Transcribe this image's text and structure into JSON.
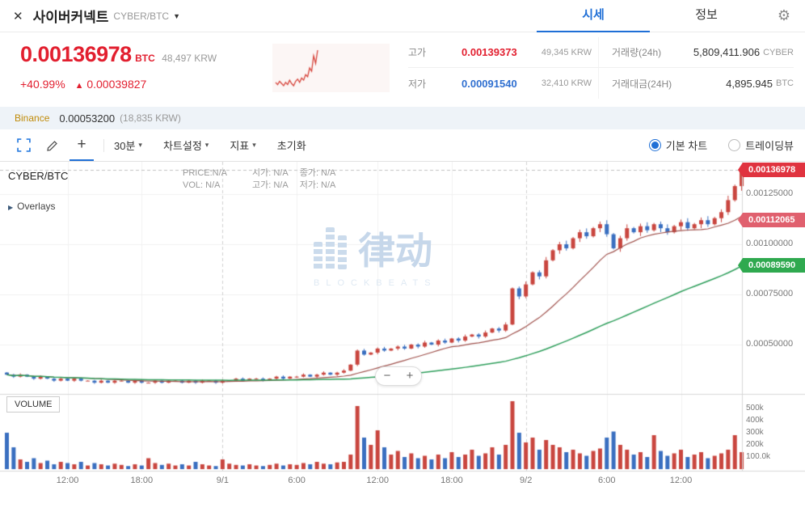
{
  "icons": {
    "close": "✕",
    "gear": "⚙",
    "chevron_down": "▼",
    "caret_down": "▾",
    "overlays_arrow": "▶",
    "plus": "+",
    "zoom_in": "+",
    "zoom_out": "−",
    "arrow_up": "▲"
  },
  "header": {
    "title": "사이버커넥트",
    "pair": "CYBER/BTC",
    "tabs": [
      {
        "label": "시세",
        "active": true
      },
      {
        "label": "정보",
        "active": false
      }
    ]
  },
  "price_panel": {
    "price": "0.00136978",
    "unit": "BTC",
    "krw": "48,497 KRW",
    "change_percent": "+40.99%",
    "change_value": "0.00039827",
    "stats": {
      "high_label": "고가",
      "high_value": "0.00139373",
      "high_krw": "49,345 KRW",
      "low_label": "저가",
      "low_value": "0.00091540",
      "low_krw": "32,410 KRW",
      "volume_label": "거래량(24h)",
      "volume_value": "5,809,411.906",
      "volume_unit": "CYBER",
      "amount_label": "거래대금(24H)",
      "amount_value": "4,895.945",
      "amount_unit": "BTC"
    }
  },
  "binance": {
    "name": "Binance",
    "price": "0.00053200",
    "krw": "(18,835 KRW)"
  },
  "toolbar": {
    "interval": "30분",
    "chart_settings": "차트설정",
    "indicators": "지표",
    "reset": "초기화",
    "basic_chart": "기본 차트",
    "tradingview": "트레이딩뷰"
  },
  "chart_overlay": {
    "pair": "CYBER/BTC",
    "info1": [
      "PRICE:N/A",
      "시가: N/A",
      "종가: N/A"
    ],
    "info2": [
      "VOL:  N/A",
      "고가: N/A",
      "저가: N/A"
    ],
    "overlays": "Overlays",
    "watermark": "律动",
    "watermark_sub": "BLOCKBEATS",
    "volume_label": "VOLUME"
  },
  "price_tags": {
    "current": "0.00136978",
    "ma_short": "0.00112065",
    "ma_long": "0.00089590"
  },
  "colors": {
    "up": "#c9463f",
    "down": "#3a6fc0",
    "accent": "#1f6fd6",
    "ma_short": "#a0524d",
    "ma_long": "#2e9e5b",
    "grid": "#f0f0f0",
    "grid_day": "#d0d0d0",
    "axis": "#d8d8d8",
    "dashed": "#c0c0c0"
  },
  "sparkline": {
    "values": [
      31,
      29,
      32,
      30,
      28,
      31,
      29,
      33,
      30,
      28,
      32,
      34,
      31,
      35,
      33,
      38,
      36,
      44,
      41,
      55,
      48,
      60
    ]
  },
  "chart_data": {
    "type": "candlestick",
    "interval": "30m",
    "pair": "CYBER/BTC",
    "current_price": 0.00136978,
    "ma_short_period": 15,
    "ma_long_period": 50,
    "ma_short_last": 0.00112065,
    "ma_long_last": 0.0008959,
    "ylim": [
      0.0003,
      0.00142
    ],
    "closes": [
      0.00035,
      0.00034,
      0.00035,
      0.00034,
      0.00033,
      0.00034,
      0.00033,
      0.00032,
      0.00033,
      0.00032,
      0.00033,
      0.00032,
      0.00032,
      0.00031,
      0.00032,
      0.00031,
      0.00032,
      0.00032,
      0.00031,
      0.00032,
      0.00031,
      0.00031,
      0.00032,
      0.00031,
      0.00032,
      0.00032,
      0.00031,
      0.00032,
      0.00031,
      0.00032,
      0.00032,
      0.00031,
      0.00032,
      0.00032,
      0.00033,
      0.00032,
      0.00033,
      0.00033,
      0.00032,
      0.00033,
      0.00034,
      0.00033,
      0.00034,
      0.00034,
      0.00035,
      0.00034,
      0.00035,
      0.00036,
      0.00035,
      0.00036,
      0.00037,
      0.0004,
      0.00047,
      0.00045,
      0.00046,
      0.00048,
      0.00047,
      0.00048,
      0.00049,
      0.00048,
      0.0005,
      0.00049,
      0.00051,
      0.0005,
      0.00052,
      0.00051,
      0.00053,
      0.00052,
      0.00054,
      0.00055,
      0.00054,
      0.00056,
      0.00058,
      0.00057,
      0.0006,
      0.00078,
      0.00074,
      0.0008,
      0.00086,
      0.00084,
      0.00092,
      0.00097,
      0.001,
      0.00098,
      0.00103,
      0.00106,
      0.00104,
      0.00108,
      0.0011,
      0.00105,
      0.00098,
      0.00103,
      0.00108,
      0.00106,
      0.00109,
      0.00107,
      0.0011,
      0.00108,
      0.00106,
      0.00109,
      0.00111,
      0.00108,
      0.0011,
      0.00112,
      0.0011,
      0.00113,
      0.00116,
      0.00122,
      0.00129,
      0.00136978
    ],
    "volumes_k": [
      300,
      180,
      80,
      60,
      90,
      50,
      70,
      40,
      60,
      50,
      40,
      60,
      30,
      50,
      40,
      30,
      45,
      35,
      25,
      40,
      30,
      90,
      50,
      35,
      45,
      30,
      40,
      30,
      60,
      40,
      30,
      25,
      80,
      45,
      35,
      30,
      40,
      30,
      25,
      35,
      45,
      30,
      40,
      35,
      50,
      40,
      60,
      45,
      40,
      55,
      60,
      120,
      520,
      260,
      200,
      320,
      180,
      120,
      150,
      100,
      130,
      90,
      110,
      80,
      120,
      90,
      140,
      100,
      120,
      160,
      110,
      130,
      180,
      120,
      200,
      560,
      300,
      220,
      260,
      160,
      240,
      200,
      180,
      140,
      160,
      130,
      110,
      150,
      170,
      260,
      310,
      200,
      160,
      120,
      140,
      100,
      280,
      150,
      110,
      130,
      160,
      100,
      120,
      140,
      90,
      110,
      130,
      160,
      280,
      140
    ],
    "price_axis_ticks": [
      {
        "label": "0.00125000",
        "value": 0.00125
      },
      {
        "label": "0.00100000",
        "value": 0.001
      },
      {
        "label": "0.00075000",
        "value": 0.00075
      },
      {
        "label": "0.00050000",
        "value": 0.0005
      }
    ],
    "volume_axis_ticks": [
      {
        "label": "500k",
        "value": 500
      },
      {
        "label": "400k",
        "value": 400
      },
      {
        "label": "300k",
        "value": 300
      },
      {
        "label": "200k",
        "value": 200
      },
      {
        "label": "100.0k",
        "value": 100
      }
    ],
    "x_ticks": [
      {
        "label": "12:00",
        "index": 9
      },
      {
        "label": "18:00",
        "index": 20
      },
      {
        "label": "9/1",
        "index": 32
      },
      {
        "label": "6:00",
        "index": 43
      },
      {
        "label": "12:00",
        "index": 55
      },
      {
        "label": "18:00",
        "index": 66
      },
      {
        "label": "9/2",
        "index": 77
      },
      {
        "label": "6:00",
        "index": 89
      },
      {
        "label": "12:00",
        "index": 100
      }
    ]
  }
}
